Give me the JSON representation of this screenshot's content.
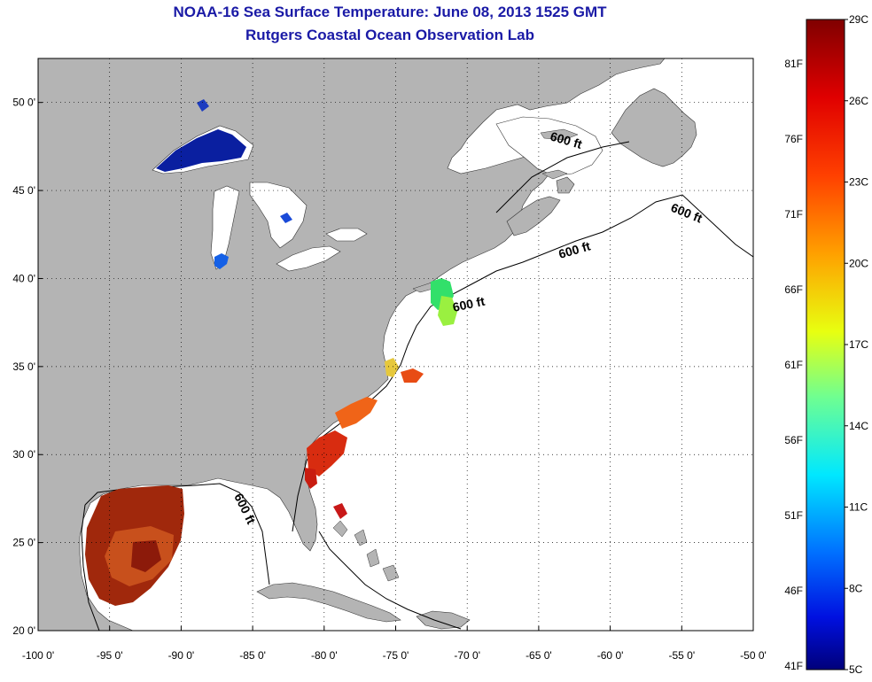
{
  "title": "NOAA-16 Sea Surface Temperature:  June 08, 2013 1525 GMT",
  "subtitle": "Rutgers Coastal Ocean Observation Lab",
  "map": {
    "lon_range": [
      -100,
      -50
    ],
    "lat_range": [
      20,
      52.5
    ],
    "lon_ticks": [
      {
        "value": -100,
        "label": "-100 0'"
      },
      {
        "value": -95,
        "label": "-95 0'"
      },
      {
        "value": -90,
        "label": "-90 0'"
      },
      {
        "value": -85,
        "label": "-85 0'"
      },
      {
        "value": -80,
        "label": "-80 0'"
      },
      {
        "value": -75,
        "label": "-75 0'"
      },
      {
        "value": -70,
        "label": "-70 0'"
      },
      {
        "value": -65,
        "label": "-65 0'"
      },
      {
        "value": -60,
        "label": "-60 0'"
      },
      {
        "value": -55,
        "label": "-55 0'"
      },
      {
        "value": -50,
        "label": "-50 0'"
      }
    ],
    "lat_ticks": [
      {
        "value": 20,
        "label": "20 0'"
      },
      {
        "value": 25,
        "label": "25 0'"
      },
      {
        "value": 30,
        "label": "30 0'"
      },
      {
        "value": 35,
        "label": "35 0'"
      },
      {
        "value": 40,
        "label": "40 0'"
      },
      {
        "value": 45,
        "label": "45 0'"
      },
      {
        "value": 50,
        "label": "50 0'"
      }
    ],
    "grid": "dotted",
    "land_color": "#b4b4b4",
    "water_color": "#ffffff",
    "contour_labels": [
      "600 ft",
      "600 ft",
      "600 ft",
      "600 ft",
      "600 ft"
    ]
  },
  "colorbar": {
    "celsius": [
      "29C",
      "26C",
      "23C",
      "20C",
      "17C",
      "14C",
      "11C",
      "8C",
      "5C"
    ],
    "fahrenheit": [
      "81F",
      "76F",
      "71F",
      "66F",
      "61F",
      "56F",
      "51F",
      "46F",
      "41F"
    ],
    "colors": [
      "#800000",
      "#ff0000",
      "#ff8000",
      "#ffff00",
      "#80ff80",
      "#00ffff",
      "#0080ff",
      "#0000ff",
      "#00008f"
    ]
  }
}
